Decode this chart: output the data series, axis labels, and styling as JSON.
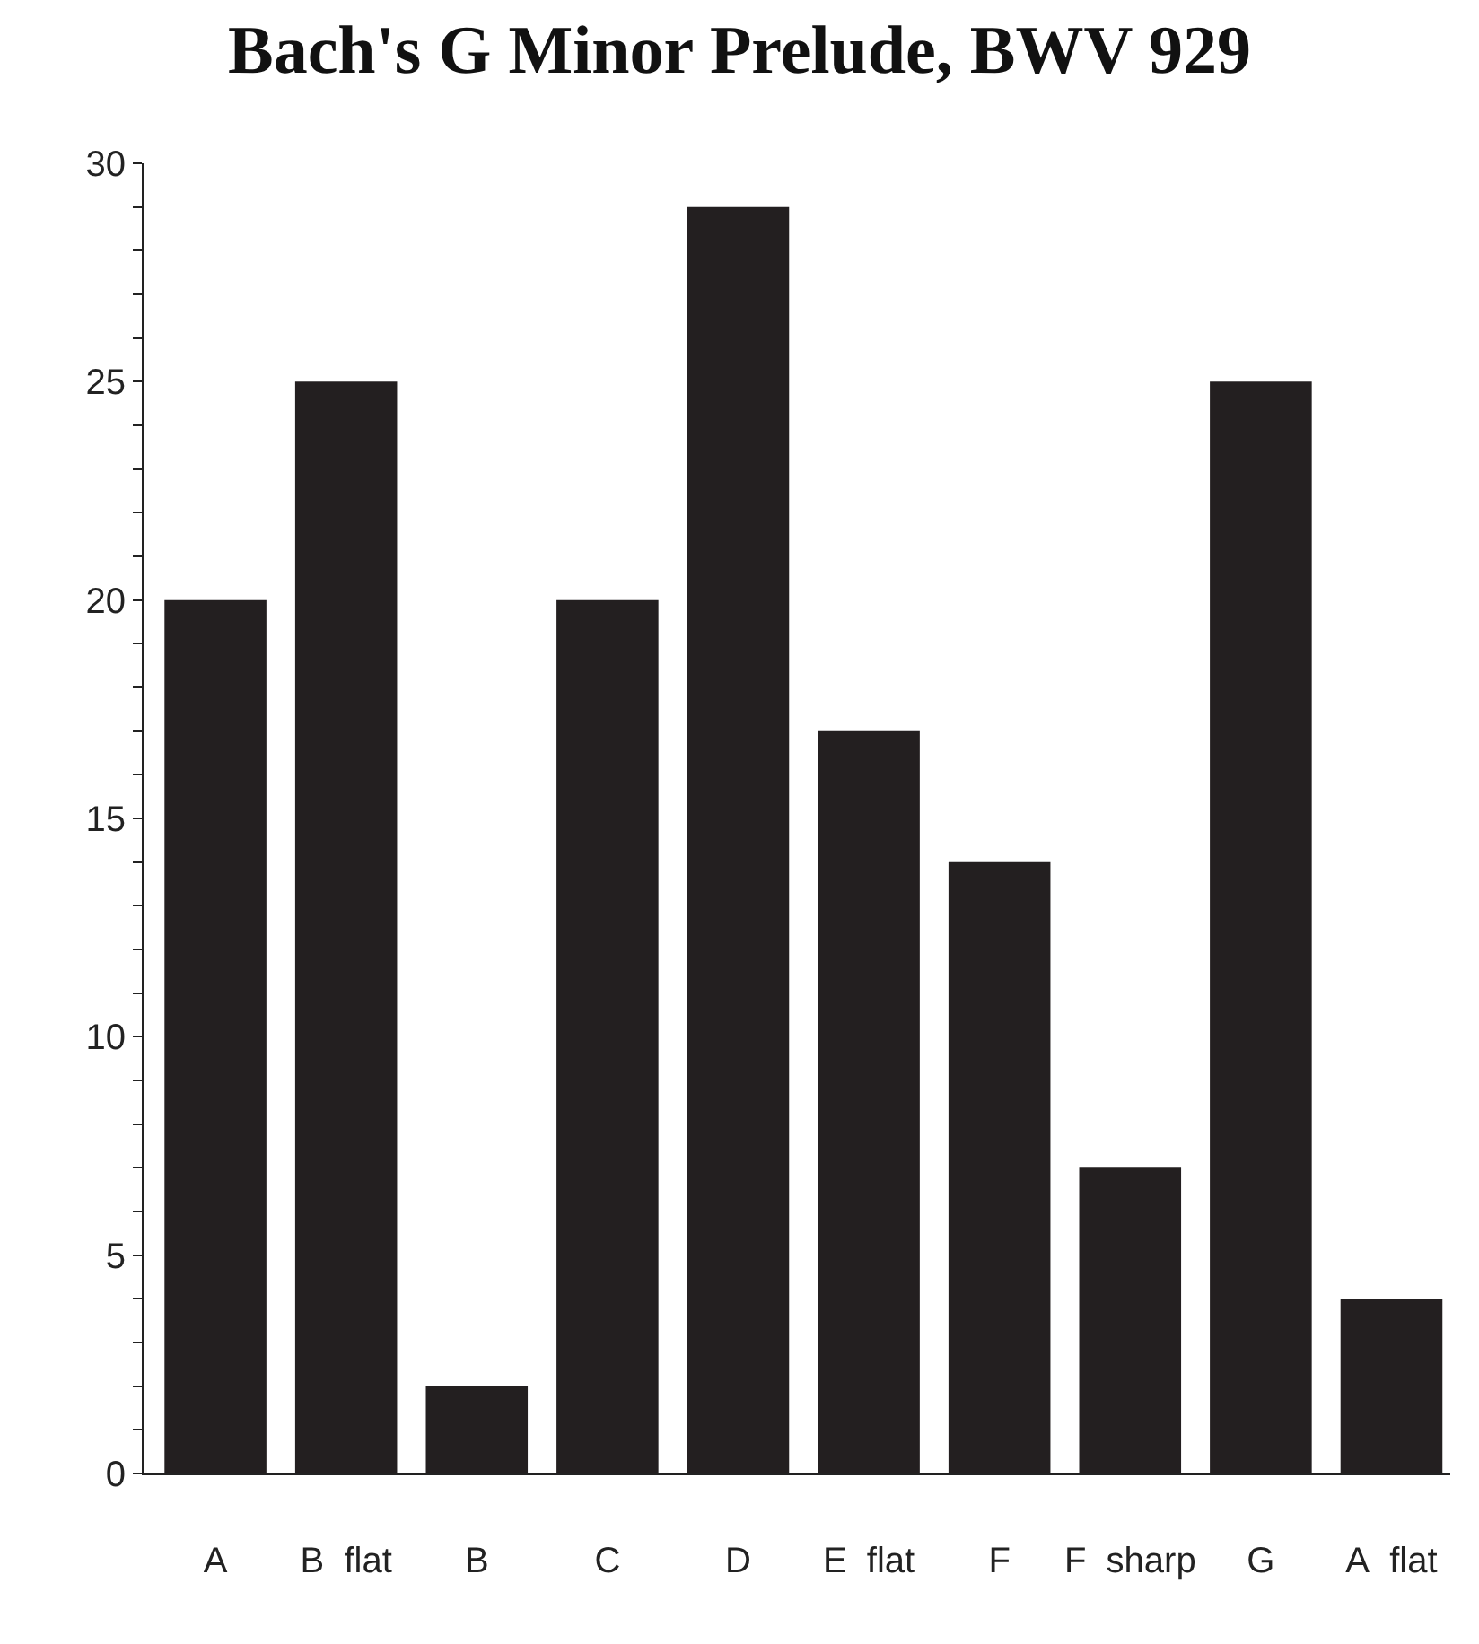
{
  "chart_data": {
    "type": "bar",
    "title": "Bach's G Minor Prelude, BWV 929",
    "categories": [
      "A",
      "B  flat",
      "B",
      "C",
      "D",
      "E  flat",
      "F",
      "F  sharp",
      "G",
      "A  flat"
    ],
    "values": [
      20,
      25,
      2,
      20,
      29,
      17,
      14,
      7,
      25,
      4
    ],
    "color": "#231f20",
    "ylim": [
      0,
      30
    ],
    "yticks": [
      0,
      {
        "value": 1,
        "label": null
      },
      {
        "value": 2,
        "label": null
      },
      {
        "value": 3,
        "label": null
      },
      {
        "value": 4,
        "label": null
      },
      5,
      {
        "value": 6,
        "label": null
      },
      {
        "value": 7,
        "label": null
      },
      {
        "value": 8,
        "label": null
      },
      {
        "value": 9,
        "label": null
      },
      10,
      {
        "value": 11,
        "label": null
      },
      {
        "value": 12,
        "label": null
      },
      {
        "value": 13,
        "label": null
      },
      {
        "value": 14,
        "label": null
      },
      15,
      {
        "value": 16,
        "label": null
      },
      {
        "value": 17,
        "label": null
      },
      {
        "value": 18,
        "label": null
      },
      {
        "value": 19,
        "label": null
      },
      20,
      {
        "value": 21,
        "label": null
      },
      {
        "value": 22,
        "label": null
      },
      {
        "value": 23,
        "label": null
      },
      {
        "value": 24,
        "label": null
      },
      25,
      {
        "value": 26,
        "label": null
      },
      {
        "value": 27,
        "label": null
      },
      {
        "value": 28,
        "label": null
      },
      {
        "value": 29,
        "label": null
      },
      30
    ]
  }
}
